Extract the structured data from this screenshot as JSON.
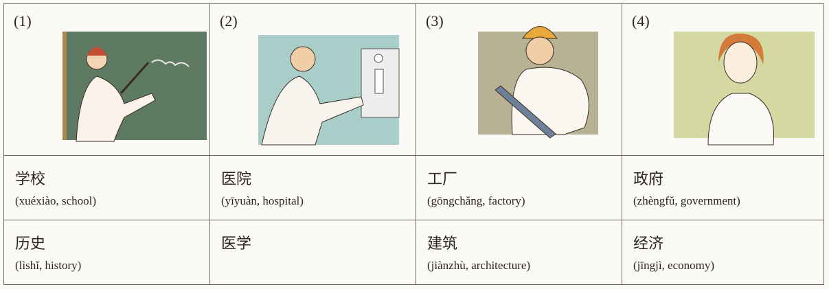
{
  "table": {
    "columns": [
      {
        "number": "(1)",
        "place": {
          "chinese": "学校",
          "gloss": "(xuéxiào, school)"
        },
        "subject": {
          "chinese": "历史",
          "gloss": "(lìshǐ, history)"
        }
      },
      {
        "number": "(2)",
        "place": {
          "chinese": "医院",
          "gloss": "(yīyuàn, hospital)"
        },
        "subject": {
          "chinese": "医学"
        }
      },
      {
        "number": "(3)",
        "place": {
          "chinese": "工厂",
          "gloss": "(gōngchǎng, factory)"
        },
        "subject": {
          "chinese": "建筑",
          "gloss": "(jiànzhù, architecture)"
        }
      },
      {
        "number": "(4)",
        "place": {
          "chinese": "政府",
          "gloss": "(zhèngfǔ, government)"
        },
        "subject": {
          "chinese": "经济",
          "gloss": "(jīngjì, economy)"
        }
      }
    ]
  }
}
